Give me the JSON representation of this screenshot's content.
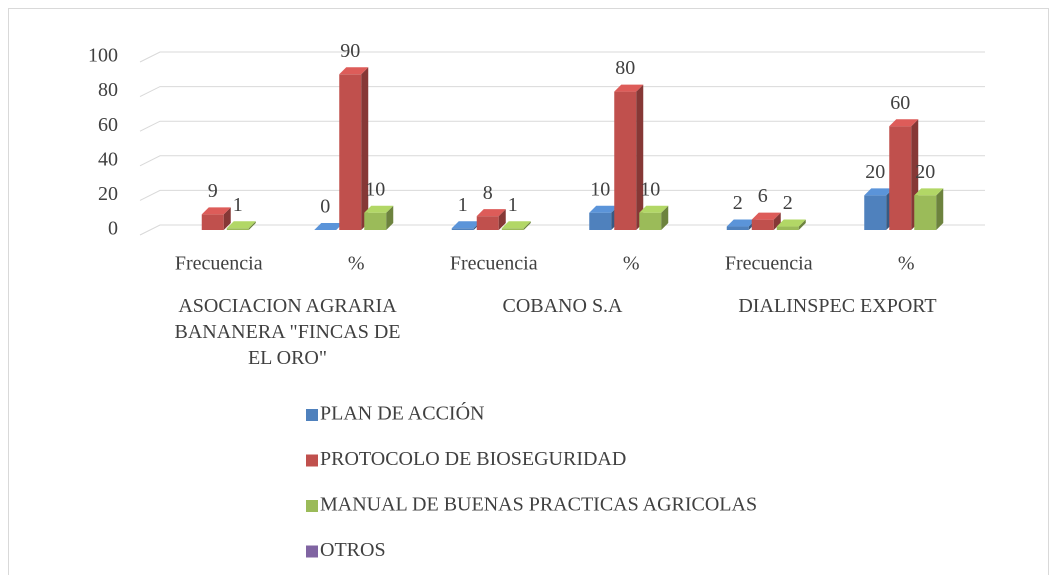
{
  "chart_data": {
    "type": "bar3d",
    "categories": [
      "Frecuencia",
      "%",
      "Frecuencia",
      "%",
      "Frecuencia",
      "%"
    ],
    "groups": [
      {
        "label": "ASOCIACION AGRARIA BANANERA \"FINCAS DE EL ORO\"",
        "span": [
          0,
          1
        ]
      },
      {
        "label": "COBANO S.A",
        "span": [
          2,
          3
        ]
      },
      {
        "label": "DIALINSPEC EXPORT",
        "span": [
          4,
          5
        ]
      }
    ],
    "series": [
      {
        "name": "PLAN DE ACCIÓN",
        "color": "#4f81bd",
        "values": [
          null,
          0,
          1,
          10,
          2,
          20
        ]
      },
      {
        "name": "PROTOCOLO DE BIOSEGURIDAD",
        "color": "#c0504d",
        "values": [
          9,
          90,
          8,
          80,
          6,
          60
        ]
      },
      {
        "name": "MANUAL DE BUENAS PRACTICAS AGRICOLAS",
        "color": "#9bbb59",
        "values": [
          1,
          10,
          1,
          10,
          2,
          20
        ]
      },
      {
        "name": "OTROS",
        "color": "#8064a2",
        "values": [
          null,
          null,
          null,
          null,
          null,
          null
        ]
      }
    ],
    "ylim": [
      0,
      100
    ],
    "yticks": [
      0,
      20,
      40,
      60,
      80,
      100
    ],
    "grid": true,
    "legend": "bottom"
  }
}
